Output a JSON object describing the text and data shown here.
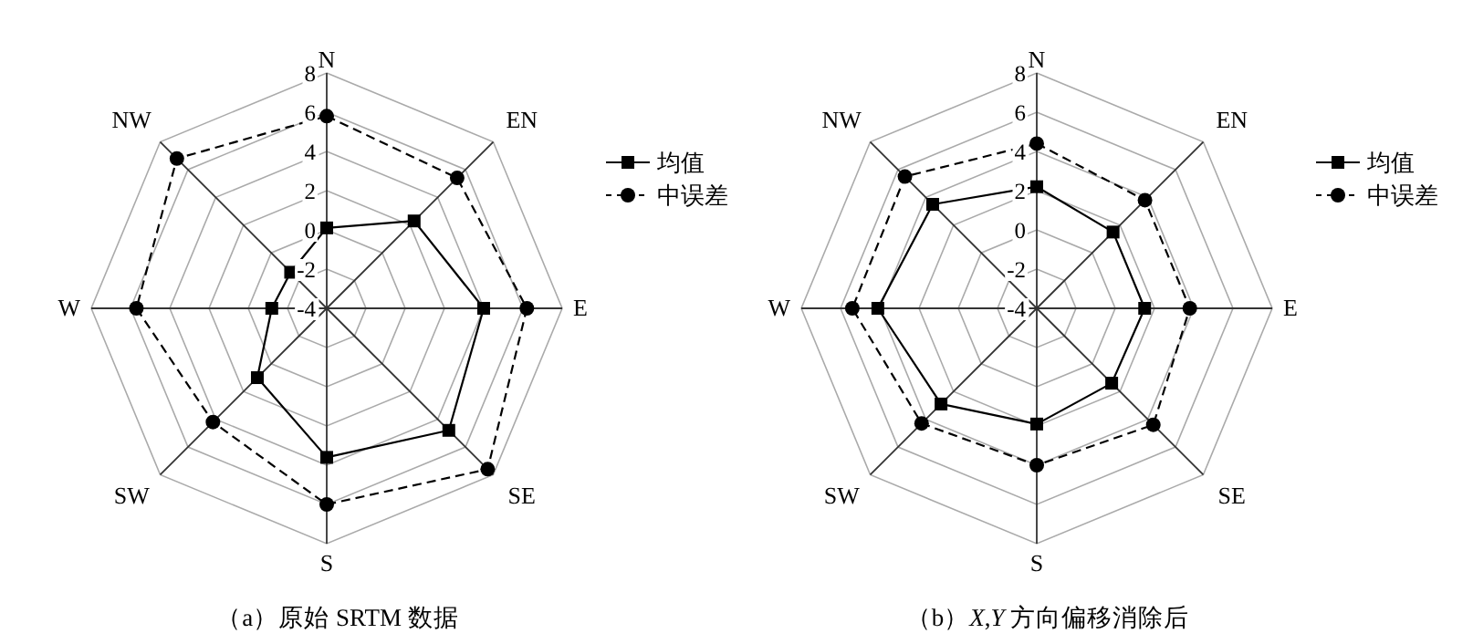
{
  "chart_data": [
    {
      "type": "radar",
      "title": "（a）原始 SRTM 数据",
      "categories": [
        "N",
        "EN",
        "E",
        "SE",
        "S",
        "SW",
        "W",
        "NW"
      ],
      "ylim": [
        -4,
        8
      ],
      "yticks": [
        -4,
        -2,
        0,
        2,
        4,
        6,
        8
      ],
      "grid": true,
      "legend": "top right",
      "series": [
        {
          "name": "均值",
          "color": "#000000",
          "marker": "square",
          "line_style": "solid",
          "values": [
            0.1,
            2.3,
            4.0,
            4.8,
            3.6,
            1.0,
            -1.2,
            -1.4
          ]
        },
        {
          "name": "中误差",
          "color": "#000000",
          "marker": "circle",
          "line_style": "dashed",
          "values": [
            5.8,
            5.4,
            6.2,
            7.6,
            6.0,
            4.2,
            5.7,
            6.8
          ]
        }
      ]
    },
    {
      "type": "radar",
      "title": "（b）*X*,*Y* 方向偏移消除后",
      "categories": [
        "N",
        "EN",
        "E",
        "SE",
        "S",
        "SW",
        "W",
        "NW"
      ],
      "ylim": [
        -4,
        8
      ],
      "yticks": [
        -4,
        -2,
        0,
        2,
        4,
        6,
        8
      ],
      "grid": true,
      "legend": "top right",
      "series": [
        {
          "name": "均值",
          "color": "#000000",
          "marker": "square",
          "line_style": "solid",
          "values": [
            2.2,
            1.5,
            1.5,
            1.4,
            1.9,
            2.9,
            4.1,
            3.5
          ]
        },
        {
          "name": "中误差",
          "color": "#000000",
          "marker": "circle",
          "line_style": "dashed",
          "values": [
            4.4,
            3.8,
            3.8,
            4.4,
            4.0,
            4.3,
            5.4,
            5.5
          ]
        }
      ]
    }
  ]
}
